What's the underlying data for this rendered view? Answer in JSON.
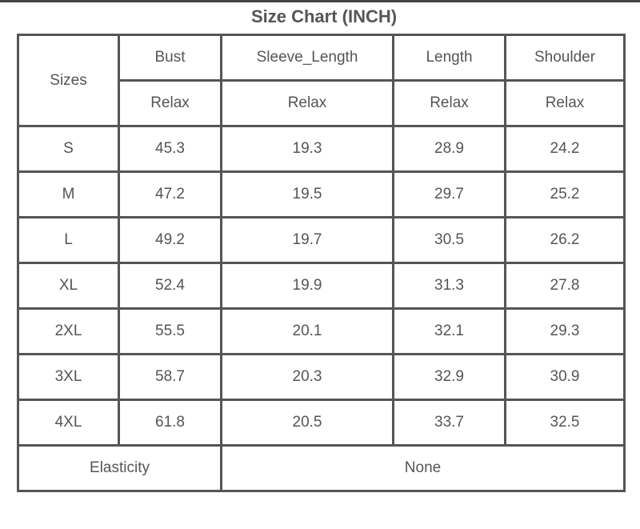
{
  "title": "Size Chart (INCH)",
  "table": {
    "header": {
      "sizes": "Sizes",
      "columns": [
        "Bust",
        "Sleeve_Length",
        "Length",
        "Shoulder"
      ],
      "subheaders": [
        "Relax",
        "Relax",
        "Relax",
        "Relax"
      ]
    },
    "rows": [
      [
        "S",
        "45.3",
        "19.3",
        "28.9",
        "24.2"
      ],
      [
        "M",
        "47.2",
        "19.5",
        "29.7",
        "25.2"
      ],
      [
        "L",
        "49.2",
        "19.7",
        "30.5",
        "26.2"
      ],
      [
        "XL",
        "52.4",
        "19.9",
        "31.3",
        "27.8"
      ],
      [
        "2XL",
        "55.5",
        "20.1",
        "32.1",
        "29.3"
      ],
      [
        "3XL",
        "58.7",
        "20.3",
        "32.9",
        "30.9"
      ],
      [
        "4XL",
        "61.8",
        "20.5",
        "33.7",
        "32.5"
      ]
    ],
    "footer": {
      "label": "Elasticity",
      "value": "None"
    }
  }
}
